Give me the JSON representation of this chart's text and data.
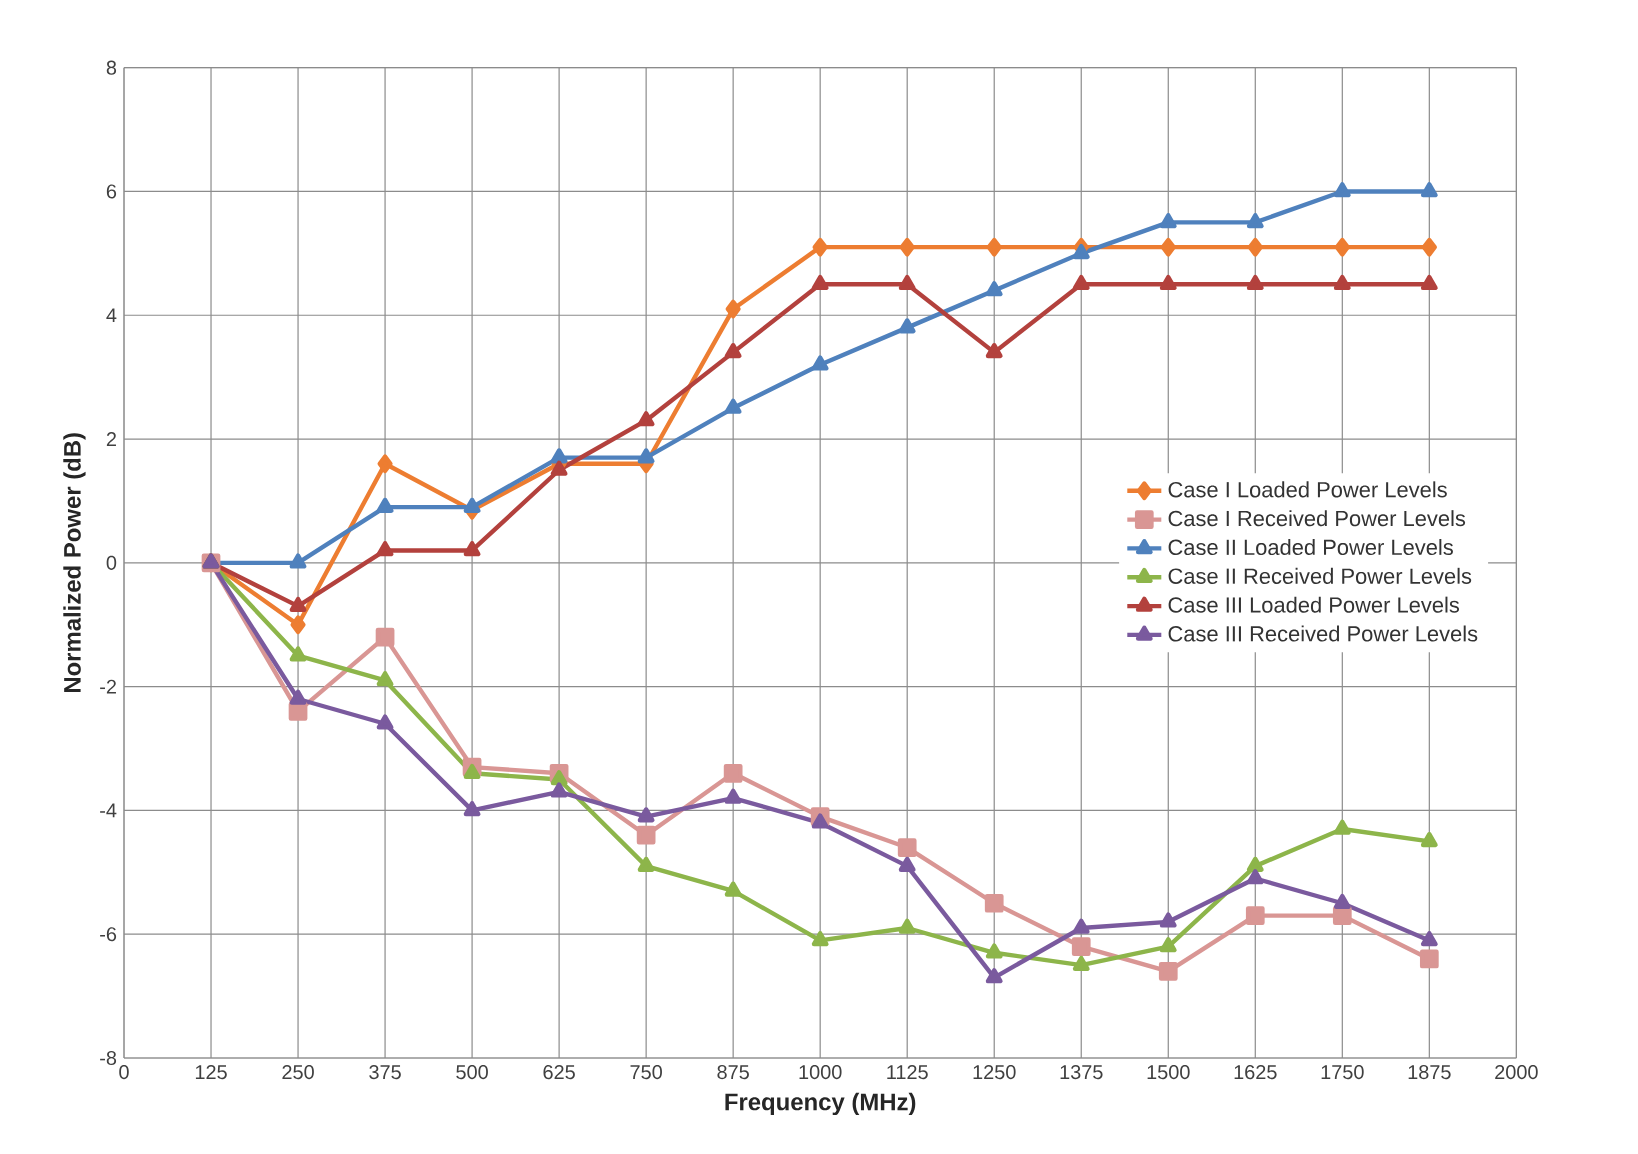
{
  "chart_data": {
    "type": "line",
    "xlabel": "Frequency (MHz)",
    "ylabel": "Normalized Power (dB)",
    "x": [
      125,
      250,
      375,
      500,
      625,
      750,
      875,
      1000,
      1125,
      1250,
      1375,
      1500,
      1625,
      1750,
      1875
    ],
    "xlim": [
      0,
      2000
    ],
    "xticks": [
      0,
      125,
      250,
      375,
      500,
      625,
      750,
      875,
      1000,
      1125,
      1250,
      1375,
      1500,
      1625,
      1750,
      1875,
      2000
    ],
    "ylim": [
      -8,
      8
    ],
    "yticks": [
      -8,
      -6,
      -4,
      -2,
      0,
      2,
      4,
      6,
      8
    ],
    "grid": true,
    "legend": "right",
    "line_style": "solid",
    "series": [
      {
        "name": "Case I Loaded Power Levels",
        "color": "#ed7d31",
        "marker": "diamond",
        "values": [
          0,
          -1,
          1.6,
          0.85,
          1.6,
          1.6,
          4.1,
          5.1,
          5.1,
          5.1,
          5.1,
          5.1,
          5.1,
          5.1,
          5.1
        ]
      },
      {
        "name": "Case I Received Power Levels",
        "color": "#d99694",
        "marker": "square",
        "values": [
          0,
          -2.4,
          -1.2,
          -3.3,
          -3.4,
          -4.4,
          -3.4,
          -4.1,
          -4.6,
          -5.5,
          -6.2,
          -6.6,
          -5.7,
          -5.7,
          -6.4
        ]
      },
      {
        "name": "Case II Loaded Power Levels",
        "color": "#4f81bd",
        "marker": "triangle",
        "values": [
          0,
          0,
          0.9,
          0.9,
          1.7,
          1.7,
          2.5,
          3.2,
          3.8,
          4.4,
          5.0,
          5.5,
          5.5,
          6.0,
          6.0
        ]
      },
      {
        "name": "Case II Received Power Levels",
        "color": "#8db54a",
        "marker": "triangle",
        "values": [
          0,
          -1.5,
          -1.9,
          -3.4,
          -3.5,
          -4.9,
          -5.3,
          -6.1,
          -5.9,
          -6.3,
          -6.5,
          -6.2,
          -4.9,
          -4.3,
          -4.5
        ]
      },
      {
        "name": "Case III Loaded Power Levels",
        "color": "#b3413d",
        "marker": "triangle",
        "values": [
          0,
          -0.7,
          0.2,
          0.2,
          1.5,
          2.3,
          3.4,
          4.5,
          4.5,
          3.4,
          4.5,
          4.5,
          4.5,
          4.5,
          4.5
        ]
      },
      {
        "name": "Case III Received Power Levels",
        "color": "#7a5a9e",
        "marker": "triangle",
        "values": [
          0,
          -2.2,
          -2.6,
          -4.0,
          -3.7,
          -4.1,
          -3.8,
          -4.2,
          -4.9,
          -6.7,
          -5.9,
          -5.8,
          -5.1,
          -5.5,
          -6.1
        ]
      }
    ]
  }
}
